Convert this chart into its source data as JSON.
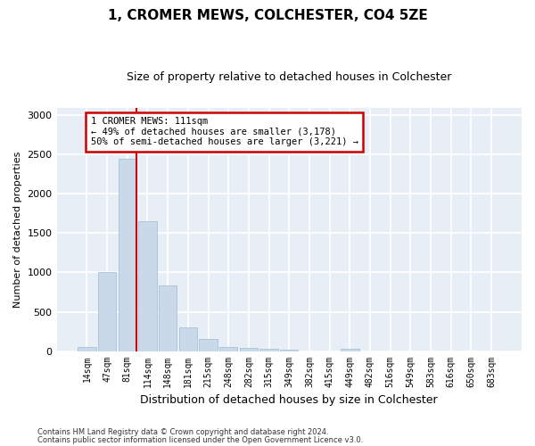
{
  "title": "1, CROMER MEWS, COLCHESTER, CO4 5ZE",
  "subtitle": "Size of property relative to detached houses in Colchester",
  "xlabel": "Distribution of detached houses by size in Colchester",
  "ylabel": "Number of detached properties",
  "bar_labels": [
    "14sqm",
    "47sqm",
    "81sqm",
    "114sqm",
    "148sqm",
    "181sqm",
    "215sqm",
    "248sqm",
    "282sqm",
    "315sqm",
    "349sqm",
    "382sqm",
    "415sqm",
    "449sqm",
    "482sqm",
    "516sqm",
    "549sqm",
    "583sqm",
    "616sqm",
    "650sqm",
    "683sqm"
  ],
  "bar_values": [
    55,
    1000,
    2450,
    1650,
    830,
    300,
    150,
    55,
    35,
    25,
    20,
    0,
    0,
    30,
    0,
    0,
    0,
    0,
    0,
    0,
    0
  ],
  "bar_color": "#c9d9ea",
  "bar_edgecolor": "#9fbbd0",
  "vline_x_idx": 2.47,
  "vline_color": "#cc0000",
  "annotation_text": "1 CROMER MEWS: 111sqm\n← 49% of detached houses are smaller (3,178)\n50% of semi-detached houses are larger (3,221) →",
  "annotation_box_facecolor": "white",
  "annotation_box_edgecolor": "#cc0000",
  "ylim": [
    0,
    3100
  ],
  "yticks": [
    0,
    500,
    1000,
    1500,
    2000,
    2500,
    3000
  ],
  "footer_line1": "Contains HM Land Registry data © Crown copyright and database right 2024.",
  "footer_line2": "Contains public sector information licensed under the Open Government Licence v3.0.",
  "bg_color": "#ffffff",
  "plot_bg_color": "#e8eef5",
  "grid_color": "#ffffff",
  "title_fontsize": 11,
  "subtitle_fontsize": 9
}
